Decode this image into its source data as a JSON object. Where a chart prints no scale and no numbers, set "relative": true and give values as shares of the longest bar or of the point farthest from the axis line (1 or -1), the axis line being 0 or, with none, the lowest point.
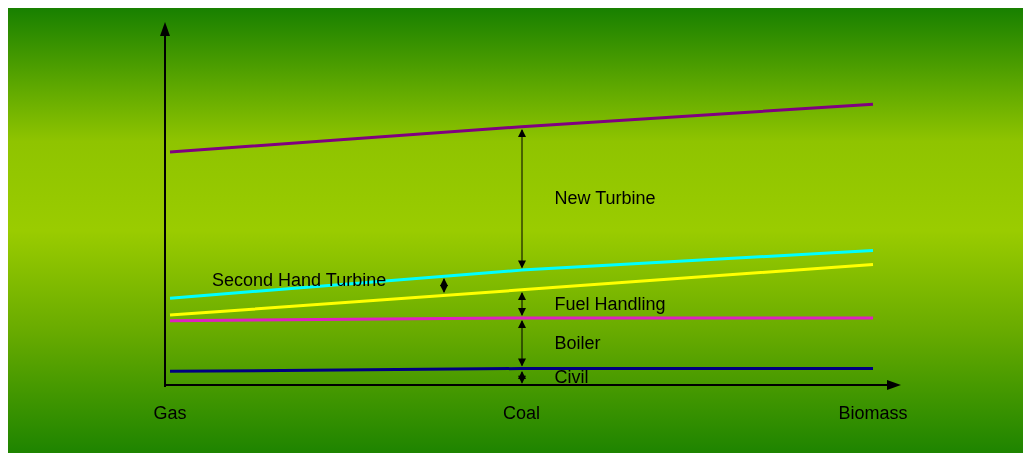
{
  "chart_data": {
    "type": "line",
    "relative": true,
    "categories": [
      "Gas",
      "Coal",
      "Biomass"
    ],
    "series": [
      {
        "color": "#000080",
        "values": [
          0.05,
          0.06,
          0.06
        ]
      },
      {
        "color": "#e020c0",
        "values": [
          0.23,
          0.24,
          0.24
        ]
      },
      {
        "color": "#ffff00",
        "values": [
          0.25,
          0.34,
          0.43
        ]
      },
      {
        "color": "#00ffff",
        "values": [
          0.31,
          0.41,
          0.48
        ]
      },
      {
        "color": "#800080",
        "values": [
          0.83,
          0.92,
          1
        ]
      }
    ],
    "annotations": [
      "New Turbine",
      "Second Hand Turbine",
      "Fuel Handling",
      "Boiler",
      "Civil"
    ],
    "grid": false,
    "legend": false,
    "marker": "none",
    "line_style": "solid"
  }
}
